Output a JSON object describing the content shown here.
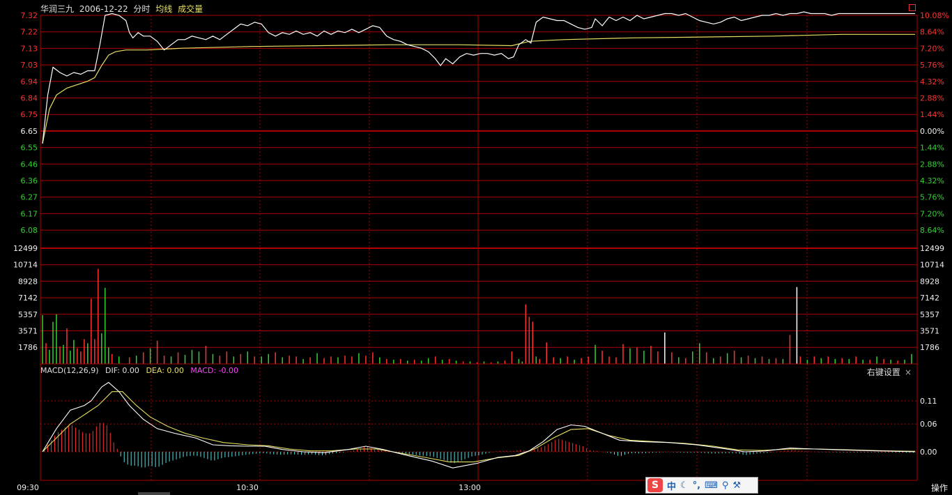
{
  "header": {
    "stock": "华润三九",
    "date": "2006-12-22",
    "period": "分时",
    "avg_label": "均线",
    "vol_label": "成交量"
  },
  "macd_header": {
    "name": "MACD(12,26,9)",
    "dif": "DIF: 0.00",
    "dea": "DEA: 0.00",
    "macd": "MACD: -0.00"
  },
  "right_click": "右键设置",
  "close_icon": "×",
  "operate": "操作",
  "ime": {
    "logo": "S",
    "lang": "中",
    "icons": [
      "moon-icon",
      "punct-icon",
      "keyboard-icon",
      "search-icon",
      "wrench-icon"
    ]
  },
  "colors": {
    "up": "#ff3232",
    "down": "#32d232",
    "price": "#ffffff",
    "avg": "#e8e060",
    "grid": "#b00000",
    "macd": "#ff40ff",
    "neg": "#54e0e0"
  },
  "chart_data": {
    "type": "line",
    "price_ticks_left": [
      "7.32",
      "7.22",
      "7.13",
      "7.03",
      "6.94",
      "6.84",
      "6.75",
      "6.65",
      "6.55",
      "6.46",
      "6.36",
      "6.27",
      "6.17",
      "6.08"
    ],
    "pct_ticks_right": [
      "10.08%",
      "8.64%",
      "7.20%",
      "5.76%",
      "4.32%",
      "2.88%",
      "1.44%",
      "0.00%",
      "1.44%",
      "2.88%",
      "4.32%",
      "5.76%",
      "7.20%",
      "8.64%"
    ],
    "vol_ticks": [
      "12499",
      "10714",
      "8928",
      "7142",
      "5357",
      "3571",
      "1786"
    ],
    "macd_ticks": [
      "0.11",
      "0.06",
      "0.00"
    ],
    "time_labels": [
      "09:30",
      "10:30",
      "13:00"
    ],
    "prev_close": 6.65,
    "ylim": [
      5.98,
      7.32
    ],
    "price": [
      [
        0,
        6.58
      ],
      [
        3,
        6.86
      ],
      [
        6,
        7.02
      ],
      [
        10,
        6.99
      ],
      [
        14,
        6.97
      ],
      [
        18,
        6.99
      ],
      [
        22,
        6.98
      ],
      [
        26,
        7.0
      ],
      [
        30,
        7.0
      ],
      [
        33,
        7.15
      ],
      [
        36,
        7.32
      ],
      [
        40,
        7.33
      ],
      [
        44,
        7.32
      ],
      [
        48,
        7.29
      ],
      [
        50,
        7.22
      ],
      [
        52,
        7.19
      ],
      [
        55,
        7.22
      ],
      [
        58,
        7.2
      ],
      [
        62,
        7.2
      ],
      [
        66,
        7.17
      ],
      [
        70,
        7.12
      ],
      [
        74,
        7.15
      ],
      [
        78,
        7.18
      ],
      [
        82,
        7.18
      ],
      [
        86,
        7.2
      ],
      [
        90,
        7.19
      ],
      [
        94,
        7.18
      ],
      [
        98,
        7.2
      ],
      [
        102,
        7.18
      ],
      [
        106,
        7.21
      ],
      [
        110,
        7.24
      ],
      [
        114,
        7.27
      ],
      [
        118,
        7.26
      ],
      [
        122,
        7.28
      ],
      [
        126,
        7.27
      ],
      [
        130,
        7.22
      ],
      [
        134,
        7.2
      ],
      [
        138,
        7.22
      ],
      [
        142,
        7.21
      ],
      [
        146,
        7.23
      ],
      [
        150,
        7.21
      ],
      [
        154,
        7.22
      ],
      [
        158,
        7.2
      ],
      [
        162,
        7.23
      ],
      [
        166,
        7.21
      ],
      [
        170,
        7.23
      ],
      [
        174,
        7.22
      ],
      [
        178,
        7.24
      ],
      [
        182,
        7.22
      ],
      [
        186,
        7.24
      ],
      [
        190,
        7.26
      ],
      [
        194,
        7.25
      ],
      [
        198,
        7.2
      ],
      [
        202,
        7.18
      ],
      [
        206,
        7.17
      ],
      [
        210,
        7.15
      ],
      [
        214,
        7.14
      ],
      [
        218,
        7.13
      ],
      [
        222,
        7.11
      ],
      [
        226,
        7.07
      ],
      [
        229,
        7.03
      ],
      [
        232,
        7.07
      ],
      [
        236,
        7.04
      ],
      [
        240,
        7.08
      ],
      [
        244,
        7.1
      ],
      [
        248,
        7.09
      ],
      [
        252,
        7.1
      ],
      [
        256,
        7.1
      ],
      [
        260,
        7.09
      ],
      [
        264,
        7.1
      ],
      [
        268,
        7.07
      ],
      [
        271,
        7.08
      ],
      [
        274,
        7.15
      ],
      [
        278,
        7.18
      ],
      [
        281,
        7.16
      ],
      [
        284,
        7.28
      ],
      [
        288,
        7.31
      ],
      [
        292,
        7.3
      ],
      [
        296,
        7.29
      ],
      [
        300,
        7.29
      ],
      [
        304,
        7.27
      ],
      [
        308,
        7.25
      ],
      [
        312,
        7.24
      ],
      [
        316,
        7.25
      ],
      [
        318,
        7.3
      ],
      [
        322,
        7.26
      ],
      [
        326,
        7.31
      ],
      [
        330,
        7.29
      ],
      [
        334,
        7.31
      ],
      [
        338,
        7.29
      ],
      [
        342,
        7.32
      ],
      [
        346,
        7.3
      ],
      [
        350,
        7.31
      ],
      [
        354,
        7.32
      ],
      [
        358,
        7.33
      ],
      [
        362,
        7.33
      ],
      [
        366,
        7.32
      ],
      [
        370,
        7.33
      ],
      [
        374,
        7.31
      ],
      [
        378,
        7.29
      ],
      [
        382,
        7.28
      ],
      [
        386,
        7.27
      ],
      [
        390,
        7.28
      ],
      [
        394,
        7.3
      ],
      [
        398,
        7.31
      ],
      [
        402,
        7.29
      ],
      [
        406,
        7.3
      ],
      [
        410,
        7.31
      ],
      [
        414,
        7.32
      ],
      [
        418,
        7.32
      ],
      [
        422,
        7.33
      ],
      [
        426,
        7.32
      ],
      [
        430,
        7.33
      ],
      [
        434,
        7.33
      ],
      [
        438,
        7.34
      ],
      [
        442,
        7.33
      ],
      [
        446,
        7.33
      ],
      [
        450,
        7.33
      ],
      [
        454,
        7.32
      ],
      [
        458,
        7.33
      ],
      [
        462,
        7.33
      ],
      [
        466,
        7.33
      ],
      [
        470,
        7.33
      ],
      [
        474,
        7.33
      ],
      [
        478,
        7.33
      ],
      [
        482,
        7.33
      ],
      [
        486,
        7.33
      ],
      [
        490,
        7.33
      ],
      [
        494,
        7.33
      ],
      [
        498,
        7.33
      ],
      [
        502,
        7.33
      ]
    ],
    "avg": [
      [
        0,
        6.58
      ],
      [
        4,
        6.78
      ],
      [
        8,
        6.86
      ],
      [
        14,
        6.9
      ],
      [
        20,
        6.92
      ],
      [
        26,
        6.94
      ],
      [
        30,
        6.96
      ],
      [
        34,
        7.03
      ],
      [
        38,
        7.09
      ],
      [
        42,
        7.11
      ],
      [
        48,
        7.12
      ],
      [
        60,
        7.12
      ],
      [
        80,
        7.13
      ],
      [
        120,
        7.14
      ],
      [
        160,
        7.145
      ],
      [
        200,
        7.15
      ],
      [
        240,
        7.15
      ],
      [
        270,
        7.145
      ],
      [
        280,
        7.17
      ],
      [
        300,
        7.18
      ],
      [
        340,
        7.19
      ],
      [
        380,
        7.195
      ],
      [
        420,
        7.2
      ],
      [
        460,
        7.21
      ],
      [
        502,
        7.21
      ]
    ],
    "volume": [
      [
        0,
        5900,
        "d"
      ],
      [
        2,
        2500,
        "u"
      ],
      [
        4,
        1700,
        "d"
      ],
      [
        6,
        5100,
        "d"
      ],
      [
        8,
        6000,
        "d"
      ],
      [
        10,
        2100,
        "u"
      ],
      [
        12,
        2300,
        "d"
      ],
      [
        14,
        4300,
        "u"
      ],
      [
        16,
        1600,
        "d"
      ],
      [
        18,
        2900,
        "d"
      ],
      [
        20,
        1900,
        "u"
      ],
      [
        22,
        1500,
        "u"
      ],
      [
        24,
        3000,
        "u"
      ],
      [
        26,
        2500,
        "d"
      ],
      [
        28,
        7900,
        "u"
      ],
      [
        30,
        3000,
        "u"
      ],
      [
        32,
        11500,
        "u"
      ],
      [
        34,
        3700,
        "d"
      ],
      [
        36,
        9200,
        "d"
      ],
      [
        38,
        2000,
        "d"
      ],
      [
        40,
        1200,
        "u"
      ],
      [
        44,
        900,
        "d"
      ],
      [
        50,
        800,
        "u"
      ],
      [
        54,
        1000,
        "d"
      ],
      [
        58,
        1400,
        "u"
      ],
      [
        62,
        1900,
        "d"
      ],
      [
        66,
        2800,
        "u"
      ],
      [
        70,
        1000,
        "u"
      ],
      [
        74,
        900,
        "d"
      ],
      [
        78,
        1400,
        "u"
      ],
      [
        82,
        1100,
        "d"
      ],
      [
        86,
        1700,
        "d"
      ],
      [
        90,
        1500,
        "d"
      ],
      [
        94,
        2200,
        "u"
      ],
      [
        98,
        1200,
        "d"
      ],
      [
        102,
        1000,
        "u"
      ],
      [
        106,
        1500,
        "u"
      ],
      [
        110,
        900,
        "d"
      ],
      [
        114,
        1200,
        "u"
      ],
      [
        118,
        1500,
        "d"
      ],
      [
        122,
        900,
        "u"
      ],
      [
        126,
        900,
        "d"
      ],
      [
        130,
        1200,
        "d"
      ],
      [
        134,
        1400,
        "u"
      ],
      [
        138,
        800,
        "d"
      ],
      [
        142,
        1000,
        "u"
      ],
      [
        146,
        900,
        "u"
      ],
      [
        150,
        600,
        "d"
      ],
      [
        154,
        800,
        "u"
      ],
      [
        158,
        1300,
        "d"
      ],
      [
        162,
        700,
        "u"
      ],
      [
        166,
        900,
        "u"
      ],
      [
        170,
        800,
        "d"
      ],
      [
        174,
        1000,
        "u"
      ],
      [
        178,
        900,
        "u"
      ],
      [
        182,
        1300,
        "d"
      ],
      [
        186,
        1000,
        "u"
      ],
      [
        190,
        1400,
        "u"
      ],
      [
        194,
        800,
        "d"
      ],
      [
        198,
        600,
        "u"
      ],
      [
        202,
        500,
        "d"
      ],
      [
        206,
        600,
        "u"
      ],
      [
        210,
        400,
        "d"
      ],
      [
        214,
        500,
        "u"
      ],
      [
        218,
        400,
        "d"
      ],
      [
        222,
        700,
        "d"
      ],
      [
        226,
        900,
        "u"
      ],
      [
        230,
        500,
        "d"
      ],
      [
        234,
        600,
        "u"
      ],
      [
        238,
        400,
        "d"
      ],
      [
        242,
        300,
        "u"
      ],
      [
        246,
        300,
        "d"
      ],
      [
        250,
        200,
        "u"
      ],
      [
        254,
        300,
        "d"
      ],
      [
        258,
        200,
        "u"
      ],
      [
        262,
        300,
        "d"
      ],
      [
        266,
        400,
        "u"
      ],
      [
        270,
        1500,
        "u"
      ],
      [
        274,
        600,
        "d"
      ],
      [
        276,
        300,
        "d"
      ],
      [
        278,
        7200,
        "u"
      ],
      [
        280,
        5700,
        "u"
      ],
      [
        282,
        5100,
        "u"
      ],
      [
        284,
        900,
        "d"
      ],
      [
        286,
        600,
        "u"
      ],
      [
        290,
        2600,
        "u"
      ],
      [
        294,
        800,
        "u"
      ],
      [
        298,
        700,
        "d"
      ],
      [
        302,
        900,
        "u"
      ],
      [
        306,
        500,
        "d"
      ],
      [
        310,
        700,
        "u"
      ],
      [
        314,
        900,
        "u"
      ],
      [
        318,
        2300,
        "d"
      ],
      [
        322,
        1600,
        "u"
      ],
      [
        326,
        900,
        "u"
      ],
      [
        330,
        800,
        "u"
      ],
      [
        334,
        2400,
        "u"
      ],
      [
        338,
        1900,
        "d"
      ],
      [
        342,
        2000,
        "u"
      ],
      [
        346,
        1600,
        "d"
      ],
      [
        350,
        2200,
        "u"
      ],
      [
        354,
        1500,
        "u"
      ],
      [
        358,
        3800,
        "d"
      ],
      [
        362,
        1400,
        "u"
      ],
      [
        366,
        800,
        "d"
      ],
      [
        370,
        700,
        "u"
      ],
      [
        374,
        1500,
        "d"
      ],
      [
        378,
        2500,
        "d"
      ],
      [
        382,
        1400,
        "u"
      ],
      [
        386,
        700,
        "d"
      ],
      [
        390,
        900,
        "u"
      ],
      [
        394,
        1300,
        "d"
      ],
      [
        398,
        1600,
        "u"
      ],
      [
        402,
        800,
        "d"
      ],
      [
        406,
        1000,
        "u"
      ],
      [
        410,
        700,
        "d"
      ],
      [
        414,
        900,
        "u"
      ],
      [
        418,
        600,
        "d"
      ],
      [
        422,
        700,
        "u"
      ],
      [
        426,
        600,
        "d"
      ],
      [
        430,
        3500,
        "u"
      ],
      [
        434,
        9300,
        "d"
      ],
      [
        436,
        900,
        "u"
      ],
      [
        440,
        500,
        "d"
      ],
      [
        444,
        900,
        "u"
      ],
      [
        448,
        700,
        "d"
      ],
      [
        452,
        900,
        "u"
      ],
      [
        456,
        600,
        "d"
      ],
      [
        460,
        700,
        "u"
      ],
      [
        464,
        600,
        "d"
      ],
      [
        468,
        900,
        "u"
      ],
      [
        472,
        500,
        "d"
      ],
      [
        476,
        500,
        "u"
      ],
      [
        480,
        900,
        "d"
      ],
      [
        484,
        600,
        "u"
      ],
      [
        488,
        500,
        "d"
      ],
      [
        492,
        400,
        "u"
      ],
      [
        496,
        500,
        "d"
      ],
      [
        500,
        1200,
        "d"
      ]
    ],
    "dif": [
      [
        0,
        0.0
      ],
      [
        8,
        0.05
      ],
      [
        16,
        0.09
      ],
      [
        24,
        0.1
      ],
      [
        28,
        0.11
      ],
      [
        34,
        0.14
      ],
      [
        38,
        0.15
      ],
      [
        44,
        0.13
      ],
      [
        50,
        0.1
      ],
      [
        58,
        0.07
      ],
      [
        66,
        0.05
      ],
      [
        76,
        0.04
      ],
      [
        88,
        0.03
      ],
      [
        98,
        0.015
      ],
      [
        108,
        0.013
      ],
      [
        118,
        0.012
      ],
      [
        128,
        0.012
      ],
      [
        138,
        0.005
      ],
      [
        150,
        0.0
      ],
      [
        162,
        -0.002
      ],
      [
        176,
        0.005
      ],
      [
        186,
        0.012
      ],
      [
        196,
        0.005
      ],
      [
        210,
        -0.008
      ],
      [
        224,
        -0.02
      ],
      [
        236,
        -0.035
      ],
      [
        250,
        -0.025
      ],
      [
        262,
        -0.012
      ],
      [
        272,
        -0.008
      ],
      [
        280,
        0.002
      ],
      [
        288,
        0.022
      ],
      [
        296,
        0.048
      ],
      [
        304,
        0.058
      ],
      [
        312,
        0.055
      ],
      [
        322,
        0.04
      ],
      [
        332,
        0.025
      ],
      [
        344,
        0.022
      ],
      [
        360,
        0.02
      ],
      [
        376,
        0.015
      ],
      [
        392,
        0.007
      ],
      [
        404,
        0.0
      ],
      [
        416,
        0.002
      ],
      [
        430,
        0.008
      ],
      [
        444,
        0.006
      ],
      [
        460,
        0.004
      ],
      [
        480,
        0.002
      ],
      [
        502,
        0.0
      ]
    ],
    "dea": [
      [
        0,
        0.0
      ],
      [
        8,
        0.03
      ],
      [
        16,
        0.06
      ],
      [
        24,
        0.08
      ],
      [
        32,
        0.1
      ],
      [
        40,
        0.13
      ],
      [
        46,
        0.13
      ],
      [
        54,
        0.1
      ],
      [
        62,
        0.075
      ],
      [
        72,
        0.055
      ],
      [
        82,
        0.04
      ],
      [
        92,
        0.03
      ],
      [
        104,
        0.02
      ],
      [
        118,
        0.015
      ],
      [
        130,
        0.013
      ],
      [
        142,
        0.006
      ],
      [
        154,
        0.002
      ],
      [
        166,
        0.002
      ],
      [
        180,
        0.006
      ],
      [
        192,
        0.006
      ],
      [
        206,
        -0.003
      ],
      [
        220,
        -0.012
      ],
      [
        234,
        -0.022
      ],
      [
        248,
        -0.022
      ],
      [
        262,
        -0.013
      ],
      [
        274,
        -0.008
      ],
      [
        284,
        0.008
      ],
      [
        294,
        0.03
      ],
      [
        304,
        0.048
      ],
      [
        314,
        0.05
      ],
      [
        326,
        0.035
      ],
      [
        338,
        0.025
      ],
      [
        352,
        0.022
      ],
      [
        370,
        0.018
      ],
      [
        386,
        0.012
      ],
      [
        400,
        0.004
      ],
      [
        414,
        0.003
      ],
      [
        430,
        0.006
      ],
      [
        446,
        0.006
      ],
      [
        466,
        0.004
      ],
      [
        486,
        0.002
      ],
      [
        502,
        0.001
      ]
    ]
  }
}
